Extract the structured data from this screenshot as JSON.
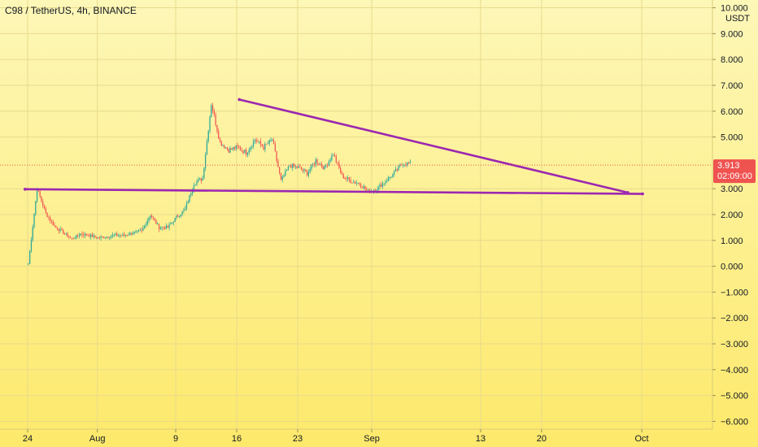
{
  "chart_data": {
    "type": "candlestick",
    "title": "C98 / TetherUS, 4h, BINANCE",
    "currency": "USDT",
    "ylim": [
      -6.3,
      10.3
    ],
    "y_ticks": [
      {
        "v": 10,
        "label": "10.000"
      },
      {
        "v": 9,
        "label": "9.000"
      },
      {
        "v": 8,
        "label": "8.000"
      },
      {
        "v": 7,
        "label": "7.000"
      },
      {
        "v": 6,
        "label": "6.000"
      },
      {
        "v": 5,
        "label": "5.000"
      },
      {
        "v": 3,
        "label": "3.000"
      },
      {
        "v": 2,
        "label": "2.000"
      },
      {
        "v": 1,
        "label": "1.000"
      },
      {
        "v": 0,
        "label": "0.000"
      },
      {
        "v": -1,
        "label": "−1.000"
      },
      {
        "v": -2,
        "label": "−2.000"
      },
      {
        "v": -3,
        "label": "−3.000"
      },
      {
        "v": -4,
        "label": "−4.000"
      },
      {
        "v": -5,
        "label": "−5.000"
      },
      {
        "v": -6,
        "label": "−6.000"
      }
    ],
    "x_ticks": [
      "24",
      "Aug",
      "9",
      "16",
      "23",
      "Sep",
      "13",
      "20",
      "Oct"
    ],
    "last_price": {
      "value": 3.913,
      "label": "3.913",
      "countdown": "02:09:00"
    },
    "path": [
      0.1,
      3.0,
      2.05,
      1.55,
      1.3,
      1.05,
      1.25,
      1.2,
      1.1,
      1.15,
      1.2,
      1.2,
      1.3,
      1.35,
      2.0,
      1.5,
      1.5,
      1.9,
      2.2,
      3.2,
      3.4,
      6.3,
      4.8,
      4.5,
      4.6,
      4.4,
      4.9,
      4.6,
      4.9,
      3.3,
      3.9,
      3.8,
      3.6,
      4.1,
      3.8,
      4.35,
      3.5,
      3.3,
      3.2,
      2.9,
      3.0,
      3.3,
      3.6,
      4.0,
      3.95
    ],
    "trendlines": [
      {
        "name": "descending-resistance",
        "points": [
          [
            24.3,
            6.45
          ],
          [
            68.9,
            2.85
          ]
        ],
        "color": "#9c27b0"
      },
      {
        "name": "horizontal-support",
        "points": [
          [
            -0.3,
            2.98
          ],
          [
            70.6,
            2.8
          ]
        ],
        "color": "#9c27b0"
      }
    ],
    "colors": {
      "up": "#26a69a",
      "down": "#ef5350",
      "trendline": "#9c27b0",
      "price_tag": "#ef5350",
      "background_top": "#fdf7b8",
      "background_bottom": "#fde96b"
    }
  }
}
